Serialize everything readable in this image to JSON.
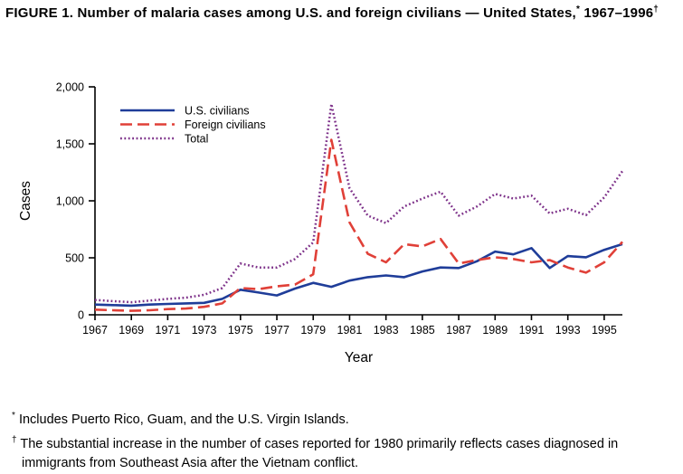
{
  "title": {
    "text1": "FIGURE 1. Number of malaria cases among U.S. and foreign civilians — United States,",
    "sup1": "*",
    "text2": " 1967–1996",
    "sup2": "†"
  },
  "footnotes": [
    {
      "marker": "*",
      "text": "Includes Puerto Rico, Guam, and the U.S. Virgin Islands."
    },
    {
      "marker": "†",
      "text": "The substantial increase in the number of cases reported for 1980 primarily reflects cases diagnosed in immigrants from Southeast Asia after the Vietnam conflict."
    }
  ],
  "chart_data": {
    "type": "line",
    "title": "Number of malaria cases among U.S. and foreign civilians — United States, 1967–1996",
    "xlabel": "Year",
    "ylabel": "Cases",
    "x_range": [
      1967,
      1996
    ],
    "ylim": [
      0,
      2000
    ],
    "grid": false,
    "legend_position": "top-left-inside",
    "xticks": [
      1967,
      1969,
      1971,
      1973,
      1975,
      1977,
      1979,
      1981,
      1983,
      1985,
      1987,
      1989,
      1991,
      1993,
      1995
    ],
    "yticks": [
      {
        "v": 0,
        "label": "0"
      },
      {
        "v": 500,
        "label": "500"
      },
      {
        "v": 1000,
        "label": "1,000"
      },
      {
        "v": 1500,
        "label": "1,500"
      },
      {
        "v": 2000,
        "label": "2,000"
      }
    ],
    "x": [
      1967,
      1968,
      1969,
      1970,
      1971,
      1972,
      1973,
      1974,
      1975,
      1976,
      1977,
      1978,
      1979,
      1980,
      1981,
      1982,
      1983,
      1984,
      1985,
      1986,
      1987,
      1988,
      1989,
      1990,
      1991,
      1992,
      1993,
      1994,
      1995,
      1996
    ],
    "series": [
      {
        "name": "U.S. civilians",
        "style": "solid",
        "color": "#1f3d99",
        "values": [
          90,
          85,
          80,
          90,
          95,
          100,
          105,
          140,
          220,
          195,
          170,
          230,
          280,
          245,
          300,
          330,
          345,
          330,
          380,
          415,
          410,
          470,
          555,
          530,
          585,
          410,
          515,
          505,
          570,
          620
        ]
      },
      {
        "name": "Foreign civilians",
        "style": "dashed",
        "color": "#e04038",
        "values": [
          45,
          40,
          35,
          40,
          50,
          55,
          70,
          100,
          235,
          225,
          250,
          265,
          355,
          1535,
          810,
          535,
          460,
          620,
          600,
          665,
          450,
          480,
          505,
          490,
          460,
          480,
          415,
          370,
          460,
          640
        ]
      },
      {
        "name": "Total",
        "style": "dotted",
        "color": "#7d3189",
        "values": [
          130,
          120,
          110,
          125,
          140,
          150,
          175,
          235,
          450,
          415,
          415,
          490,
          635,
          1850,
          1110,
          870,
          805,
          950,
          1020,
          1080,
          870,
          950,
          1060,
          1020,
          1045,
          890,
          930,
          875,
          1030,
          1260
        ]
      }
    ]
  }
}
